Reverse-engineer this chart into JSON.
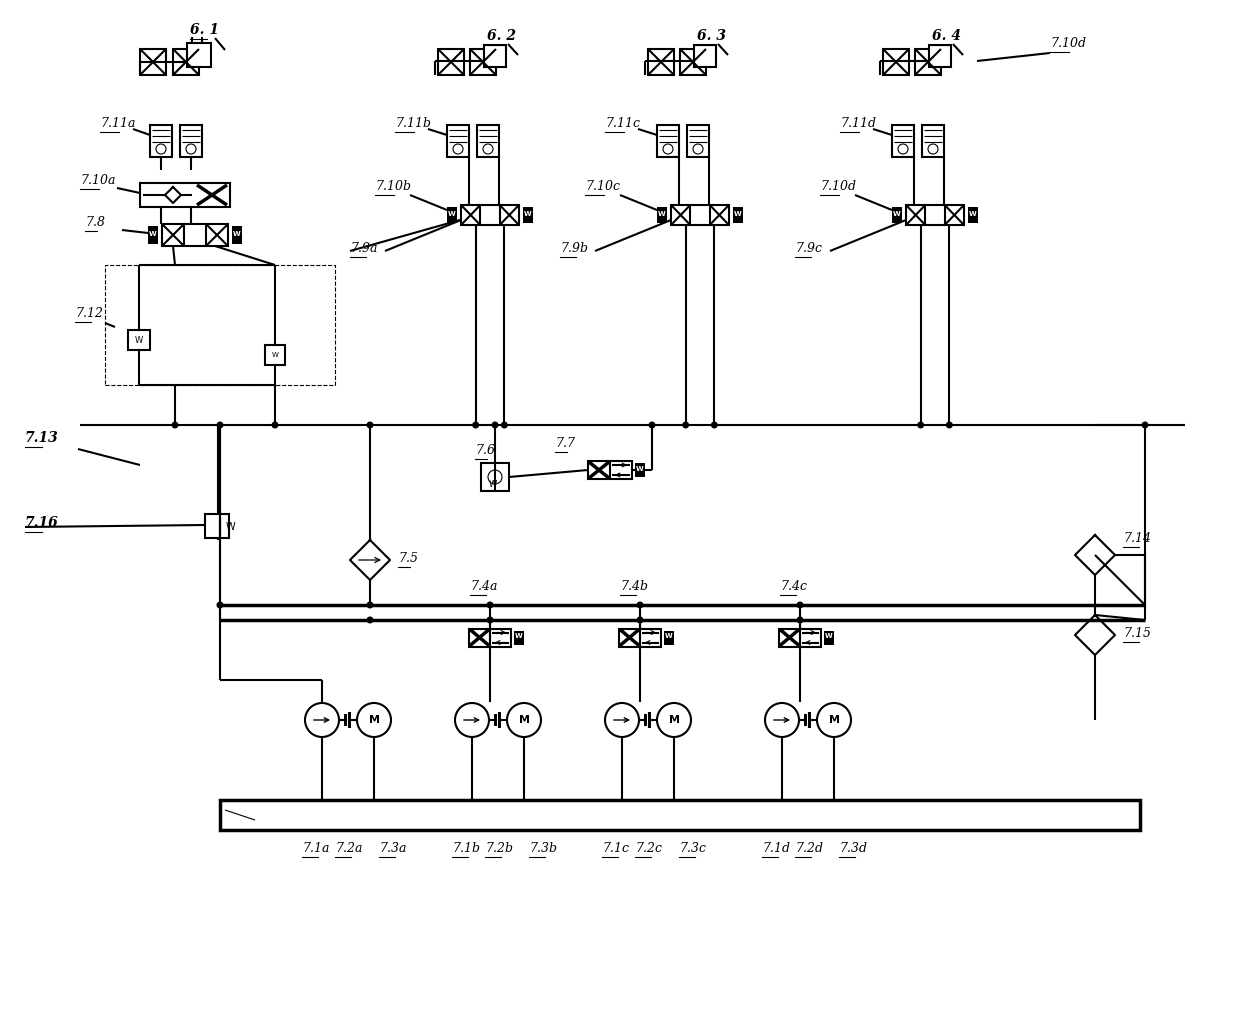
{
  "figsize": [
    12.4,
    10.15
  ],
  "dpi": 100,
  "lw": 1.5,
  "blw": 2.5,
  "labels": {
    "6_1": "6. 1",
    "6_2": "6. 2",
    "6_3": "6. 3",
    "6_4": "6. 4",
    "7_10a": "7.10a",
    "7_10b": "7.10b",
    "7_10c": "7.10c",
    "7_10d": "7.10d",
    "7_11a": "7.11a",
    "7_11b": "7.11b",
    "7_11c": "7.11c",
    "7_11d": "7.11d",
    "7_8": "7.8",
    "7_9a": "7.9a",
    "7_9b": "7.9b",
    "7_9c": "7.9c",
    "7_12": "7.12",
    "7_13": "7.13",
    "7_6": "7.6",
    "7_7": "7.7",
    "7_5": "7.5",
    "7_4a": "7.4a",
    "7_4b": "7.4b",
    "7_4c": "7.4c",
    "7_16": "7.16",
    "7_14": "7.14",
    "7_15": "7.15",
    "7_1a": "7.1a",
    "7_2a": "7.2a",
    "7_3a": "7.3a",
    "7_1b": "7.1b",
    "7_2b": "7.2b",
    "7_3b": "7.3b",
    "7_1c": "7.1c",
    "7_2c": "7.2c",
    "7_3c": "7.3c",
    "7_1d": "7.1d",
    "7_2d": "7.2d",
    "7_3d": "7.3d"
  }
}
